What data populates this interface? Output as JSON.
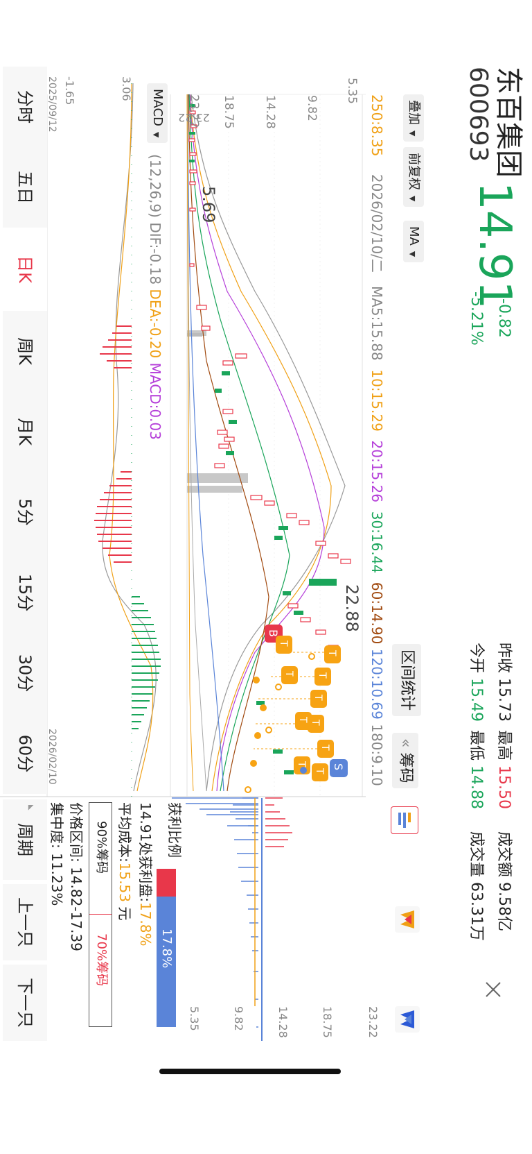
{
  "stock": {
    "name": "东百集团",
    "code": "600693",
    "price": "14.91",
    "change": "-0.82",
    "change_pct": "-5.21%"
  },
  "quote": {
    "prev_close_label": "昨收",
    "prev_close": "15.73",
    "high_label": "最高",
    "high": "15.50",
    "turnover_label": "成交额",
    "turnover": "9.58亿",
    "open_label": "今开",
    "open": "15.49",
    "low_label": "最低",
    "low": "14.88",
    "volume_label": "成交量",
    "volume": "63.31万"
  },
  "toolbar": {
    "overlay": "叠加",
    "adjust": "前复权",
    "ma": "MA",
    "range_stats": "区间统计",
    "chips": "筹码",
    "chips_prefix": "«"
  },
  "ma_line": {
    "ma250": "250:8.35",
    "date": "2026/02/10/二",
    "ma5": "MA5:15.88",
    "ma10": "10:15.29",
    "ma20": "20:15.26",
    "ma30": "30:16.44",
    "ma60": "60:14.90",
    "ma120": "120:10.69",
    "ma180": "180:9.10"
  },
  "axis": {
    "y1": "23.22",
    "y2": "18.75",
    "y3": "14.28",
    "y4": "9.82",
    "y5": "5.35"
  },
  "annotations": {
    "low": "5.69",
    "high": "22.88"
  },
  "macd": {
    "selector": "MACD",
    "params": "(12,26,9)",
    "dif": "DIF:-0.18",
    "dea": "DEA:-0.20",
    "macd": "MACD:0.03",
    "y_top": "3.06",
    "y_bottom": "-1.65",
    "date_start": "2025/09/12",
    "date_end": "2026/02/10"
  },
  "chip_panel": {
    "axis": {
      "y1": "23.22",
      "y2": "18.75",
      "y3": "14.28",
      "y4": "9.82",
      "y5": "5.35"
    },
    "profit_label": "获利比例",
    "profit_bar_pct": "17.8%",
    "profit_line_prefix": "14.91处获利盘:",
    "profit_line_value": "17.8%",
    "avg_cost_prefix": "平均成本:",
    "avg_cost_value": "15.53",
    "avg_cost_unit": "元",
    "tab90": "90%筹码",
    "tab70": "70%筹码",
    "price_range": "价格区间: 14.82-17.39",
    "concentration": "集中度: 11.23%"
  },
  "periods": [
    "分时",
    "五日",
    "日K",
    "周K",
    "月K",
    "5分",
    "15分",
    "30分",
    "60分"
  ],
  "nav_right": {
    "cycle": "周期",
    "prev": "上一只",
    "next": "下一只"
  },
  "colors": {
    "up": "#e8374a",
    "down": "#1aa55a",
    "chip_blue": "#5a84d8"
  },
  "icons": {
    "close": "close-icon",
    "chip_a": "chip-chart-icon",
    "logo1": "w-logo-orange",
    "logo2": "w-logo-blue"
  }
}
